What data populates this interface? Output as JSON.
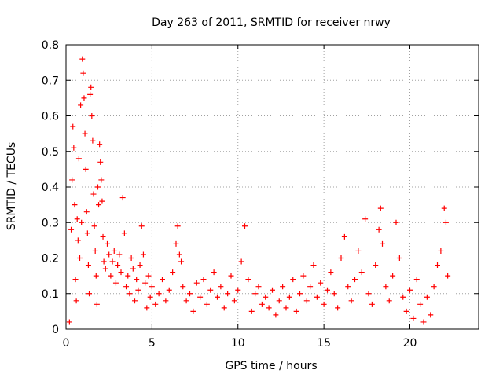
{
  "colors": {
    "background": "#ffffff",
    "series": "#ff0000",
    "axis": "#000000",
    "grid": "#a0a0a0"
  },
  "chart_data": {
    "type": "scatter",
    "title": "Day 263 of 2011, SRMTID for receiver nrwy",
    "xlabel": "GPS time / hours",
    "ylabel": "SRMTID / TECUs",
    "xlim": [
      0,
      24
    ],
    "ylim": [
      0,
      0.8
    ],
    "xticks": [
      0,
      5,
      10,
      15,
      20
    ],
    "yticks": [
      0,
      0.1,
      0.2,
      0.3,
      0.4,
      0.5,
      0.6,
      0.7,
      0.8
    ],
    "xtick_labels": [
      "0",
      "5",
      "10",
      "15",
      "20"
    ],
    "ytick_labels": [
      "0",
      "0.1",
      "0.2",
      "0.3",
      "0.4",
      "0.5",
      "0.6",
      "0.7",
      "0.8"
    ],
    "grid": true,
    "marker": "+",
    "series": [
      {
        "name": "SRMTID",
        "points": [
          [
            0.2,
            0.02
          ],
          [
            0.3,
            0.28
          ],
          [
            0.35,
            0.42
          ],
          [
            0.4,
            0.57
          ],
          [
            0.45,
            0.51
          ],
          [
            0.5,
            0.35
          ],
          [
            0.55,
            0.14
          ],
          [
            0.6,
            0.08
          ],
          [
            0.65,
            0.31
          ],
          [
            0.7,
            0.25
          ],
          [
            0.75,
            0.48
          ],
          [
            0.8,
            0.2
          ],
          [
            0.85,
            0.63
          ],
          [
            0.9,
            0.3
          ],
          [
            0.95,
            0.76
          ],
          [
            1.0,
            0.72
          ],
          [
            1.05,
            0.65
          ],
          [
            1.1,
            0.55
          ],
          [
            1.15,
            0.45
          ],
          [
            1.2,
            0.33
          ],
          [
            1.25,
            0.27
          ],
          [
            1.3,
            0.18
          ],
          [
            1.35,
            0.1
          ],
          [
            1.4,
            0.66
          ],
          [
            1.45,
            0.68
          ],
          [
            1.5,
            0.6
          ],
          [
            1.55,
            0.53
          ],
          [
            1.6,
            0.38
          ],
          [
            1.65,
            0.29
          ],
          [
            1.7,
            0.22
          ],
          [
            1.75,
            0.15
          ],
          [
            1.8,
            0.07
          ],
          [
            1.85,
            0.4
          ],
          [
            1.9,
            0.35
          ],
          [
            1.95,
            0.52
          ],
          [
            2.0,
            0.47
          ],
          [
            2.05,
            0.42
          ],
          [
            2.1,
            0.36
          ],
          [
            2.15,
            0.26
          ],
          [
            2.2,
            0.19
          ],
          [
            2.3,
            0.17
          ],
          [
            2.4,
            0.24
          ],
          [
            2.5,
            0.21
          ],
          [
            2.6,
            0.15
          ],
          [
            2.7,
            0.19
          ],
          [
            2.8,
            0.22
          ],
          [
            2.9,
            0.13
          ],
          [
            3.0,
            0.18
          ],
          [
            3.1,
            0.21
          ],
          [
            3.2,
            0.16
          ],
          [
            3.3,
            0.37
          ],
          [
            3.4,
            0.27
          ],
          [
            3.5,
            0.12
          ],
          [
            3.6,
            0.15
          ],
          [
            3.7,
            0.1
          ],
          [
            3.8,
            0.2
          ],
          [
            3.9,
            0.17
          ],
          [
            4.0,
            0.08
          ],
          [
            4.1,
            0.14
          ],
          [
            4.2,
            0.11
          ],
          [
            4.3,
            0.18
          ],
          [
            4.4,
            0.29
          ],
          [
            4.5,
            0.21
          ],
          [
            4.6,
            0.13
          ],
          [
            4.7,
            0.06
          ],
          [
            4.8,
            0.15
          ],
          [
            4.9,
            0.09
          ],
          [
            5.0,
            0.12
          ],
          [
            5.2,
            0.07
          ],
          [
            5.4,
            0.1
          ],
          [
            5.6,
            0.14
          ],
          [
            5.8,
            0.08
          ],
          [
            6.0,
            0.11
          ],
          [
            6.2,
            0.16
          ],
          [
            6.4,
            0.24
          ],
          [
            6.5,
            0.29
          ],
          [
            6.6,
            0.21
          ],
          [
            6.7,
            0.19
          ],
          [
            6.8,
            0.12
          ],
          [
            7.0,
            0.08
          ],
          [
            7.2,
            0.1
          ],
          [
            7.4,
            0.05
          ],
          [
            7.6,
            0.13
          ],
          [
            7.8,
            0.09
          ],
          [
            8.0,
            0.14
          ],
          [
            8.2,
            0.07
          ],
          [
            8.4,
            0.11
          ],
          [
            8.6,
            0.16
          ],
          [
            8.8,
            0.09
          ],
          [
            9.0,
            0.12
          ],
          [
            9.2,
            0.06
          ],
          [
            9.4,
            0.1
          ],
          [
            9.6,
            0.15
          ],
          [
            9.8,
            0.08
          ],
          [
            10.0,
            0.11
          ],
          [
            10.2,
            0.19
          ],
          [
            10.4,
            0.29
          ],
          [
            10.6,
            0.14
          ],
          [
            10.8,
            0.05
          ],
          [
            11.0,
            0.1
          ],
          [
            11.2,
            0.12
          ],
          [
            11.4,
            0.07
          ],
          [
            11.6,
            0.09
          ],
          [
            11.8,
            0.06
          ],
          [
            12.0,
            0.11
          ],
          [
            12.2,
            0.04
          ],
          [
            12.4,
            0.08
          ],
          [
            12.6,
            0.12
          ],
          [
            12.8,
            0.06
          ],
          [
            13.0,
            0.09
          ],
          [
            13.2,
            0.14
          ],
          [
            13.4,
            0.05
          ],
          [
            13.6,
            0.1
          ],
          [
            13.8,
            0.15
          ],
          [
            14.0,
            0.08
          ],
          [
            14.2,
            0.12
          ],
          [
            14.4,
            0.18
          ],
          [
            14.6,
            0.09
          ],
          [
            14.8,
            0.13
          ],
          [
            15.0,
            0.07
          ],
          [
            15.2,
            0.11
          ],
          [
            15.4,
            0.16
          ],
          [
            15.6,
            0.1
          ],
          [
            15.8,
            0.06
          ],
          [
            16.0,
            0.2
          ],
          [
            16.2,
            0.26
          ],
          [
            16.4,
            0.12
          ],
          [
            16.6,
            0.08
          ],
          [
            16.8,
            0.14
          ],
          [
            17.0,
            0.22
          ],
          [
            17.2,
            0.16
          ],
          [
            17.4,
            0.31
          ],
          [
            17.6,
            0.1
          ],
          [
            17.8,
            0.07
          ],
          [
            18.0,
            0.18
          ],
          [
            18.2,
            0.28
          ],
          [
            18.3,
            0.34
          ],
          [
            18.4,
            0.24
          ],
          [
            18.6,
            0.12
          ],
          [
            18.8,
            0.08
          ],
          [
            19.0,
            0.15
          ],
          [
            19.2,
            0.3
          ],
          [
            19.4,
            0.2
          ],
          [
            19.6,
            0.09
          ],
          [
            19.8,
            0.05
          ],
          [
            20.0,
            0.11
          ],
          [
            20.2,
            0.03
          ],
          [
            20.4,
            0.14
          ],
          [
            20.6,
            0.07
          ],
          [
            20.8,
            0.02
          ],
          [
            21.0,
            0.09
          ],
          [
            21.2,
            0.04
          ],
          [
            21.4,
            0.12
          ],
          [
            21.6,
            0.18
          ],
          [
            21.8,
            0.22
          ],
          [
            22.0,
            0.34
          ],
          [
            22.1,
            0.3
          ],
          [
            22.2,
            0.15
          ]
        ]
      }
    ]
  }
}
